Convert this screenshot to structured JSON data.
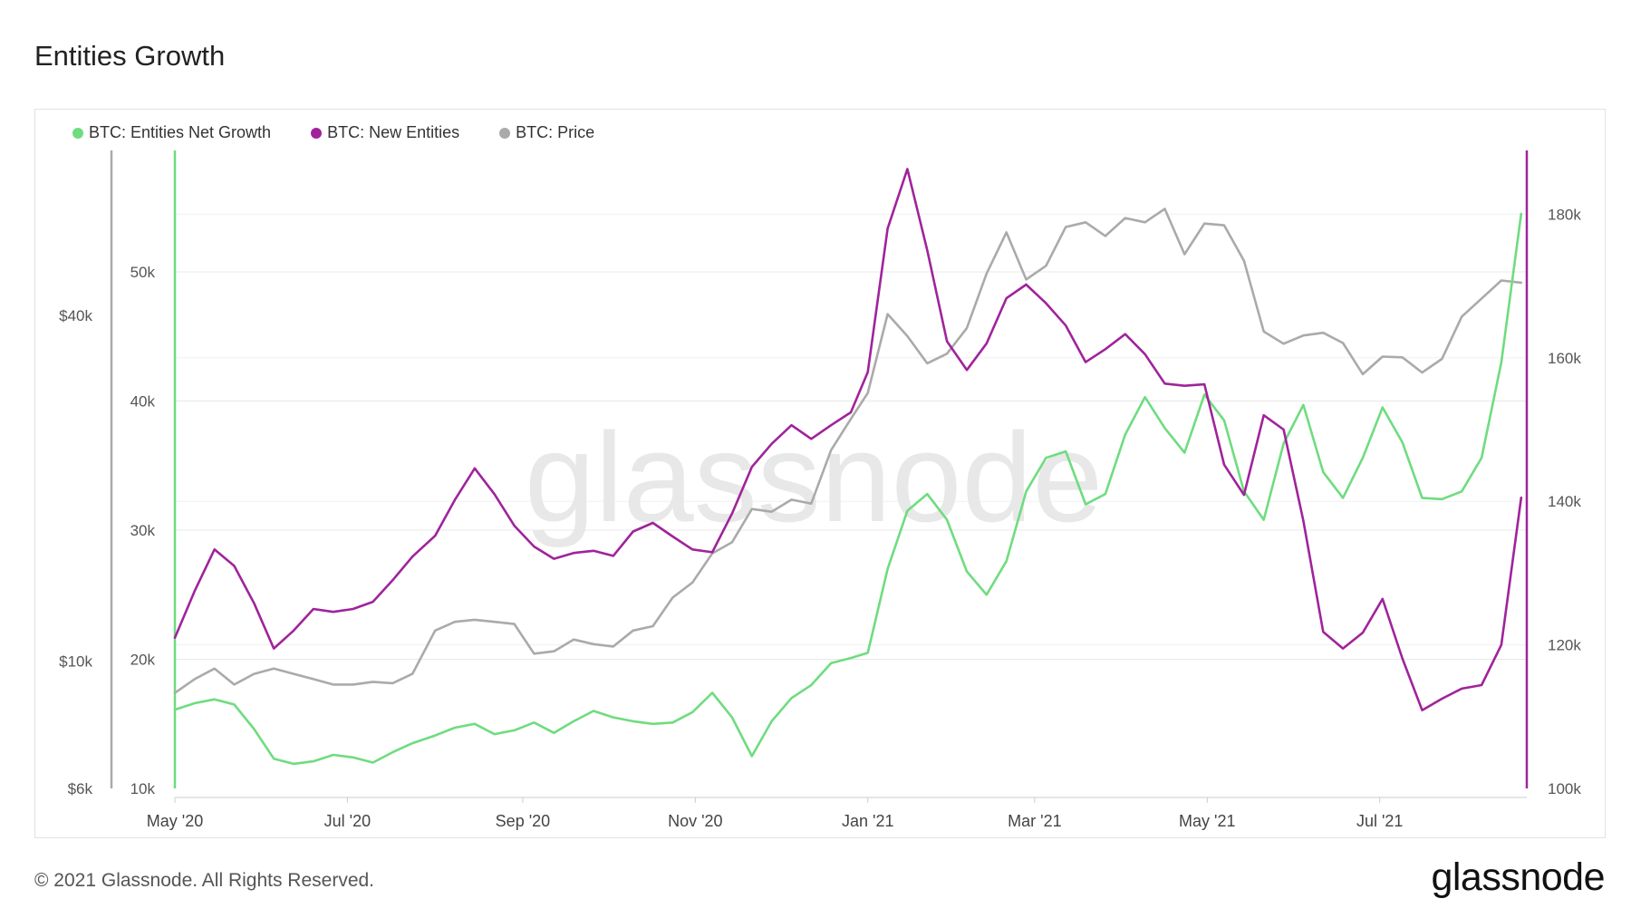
{
  "page": {
    "title": "Entities Growth"
  },
  "footer": {
    "copyright": "© 2021 Glassnode. All Rights Reserved.",
    "logo": "glassnode"
  },
  "watermark": "glassnode",
  "colors": {
    "net_growth": "#6fdc7f",
    "new_entities": "#a0239b",
    "price": "#aaaaaa",
    "grid": "#e8e8e8"
  },
  "chart_data": {
    "type": "line",
    "title": "Entities Growth",
    "x_axis": {
      "ticks": [
        "May '20",
        "Jul '20",
        "Sep '20",
        "Nov '20",
        "Jan '21",
        "Mar '21",
        "May '21",
        "Jul '21"
      ],
      "range": [
        "2020-05-01",
        "2021-07-28"
      ]
    },
    "y_axes": {
      "price": {
        "ticks": [
          "$6k",
          "$10k",
          "$40k"
        ],
        "scale": "log",
        "range": [
          6000,
          70000
        ]
      },
      "net_growth": {
        "ticks": [
          "10k",
          "20k",
          "30k",
          "40k",
          "50k"
        ],
        "range": [
          10000,
          55000
        ]
      },
      "new_entities": {
        "ticks": [
          "100k",
          "120k",
          "140k",
          "160k",
          "180k"
        ],
        "range": [
          100000,
          190000
        ]
      }
    },
    "legend": {
      "position": "top-left",
      "items": [
        "BTC: Entities Net Growth",
        "BTC: New Entities",
        "BTC: Price"
      ]
    },
    "series": [
      {
        "name": "BTC: Entities Net Growth",
        "axis": "net_growth",
        "points": [
          [
            "2020-05-01",
            16100
          ],
          [
            "2020-05-08",
            16600
          ],
          [
            "2020-05-15",
            16900
          ],
          [
            "2020-05-22",
            16500
          ],
          [
            "2020-05-29",
            14600
          ],
          [
            "2020-06-05",
            12300
          ],
          [
            "2020-06-12",
            11900
          ],
          [
            "2020-06-19",
            12100
          ],
          [
            "2020-06-26",
            12600
          ],
          [
            "2020-07-03",
            12400
          ],
          [
            "2020-07-10",
            12000
          ],
          [
            "2020-07-17",
            12800
          ],
          [
            "2020-07-24",
            13500
          ],
          [
            "2020-08-01",
            14100
          ],
          [
            "2020-08-08",
            14700
          ],
          [
            "2020-08-15",
            15000
          ],
          [
            "2020-08-22",
            14200
          ],
          [
            "2020-08-29",
            14500
          ],
          [
            "2020-09-05",
            15100
          ],
          [
            "2020-09-12",
            14300
          ],
          [
            "2020-09-19",
            15200
          ],
          [
            "2020-09-26",
            16000
          ],
          [
            "2020-10-03",
            15500
          ],
          [
            "2020-10-10",
            15200
          ],
          [
            "2020-10-17",
            15000
          ],
          [
            "2020-10-24",
            15100
          ],
          [
            "2020-10-31",
            15900
          ],
          [
            "2020-11-07",
            17400
          ],
          [
            "2020-11-14",
            15500
          ],
          [
            "2020-11-21",
            12500
          ],
          [
            "2020-11-28",
            15200
          ],
          [
            "2020-12-05",
            17000
          ],
          [
            "2020-12-12",
            18000
          ],
          [
            "2020-12-19",
            19700
          ],
          [
            "2020-12-26",
            20100
          ],
          [
            "2021-01-01",
            20500
          ],
          [
            "2021-01-08",
            27000
          ],
          [
            "2021-01-15",
            31500
          ],
          [
            "2021-01-22",
            32800
          ],
          [
            "2021-01-29",
            30800
          ],
          [
            "2021-02-05",
            26800
          ],
          [
            "2021-02-12",
            25000
          ],
          [
            "2021-02-19",
            27600
          ],
          [
            "2021-02-26",
            33000
          ],
          [
            "2021-03-05",
            35600
          ],
          [
            "2021-03-12",
            36100
          ],
          [
            "2021-03-19",
            32000
          ],
          [
            "2021-03-26",
            32800
          ],
          [
            "2021-04-02",
            37400
          ],
          [
            "2021-04-09",
            40300
          ],
          [
            "2021-04-16",
            37900
          ],
          [
            "2021-04-23",
            36000
          ],
          [
            "2021-04-30",
            40500
          ],
          [
            "2021-05-07",
            38500
          ],
          [
            "2021-05-14",
            33000
          ],
          [
            "2021-05-21",
            30800
          ],
          [
            "2021-05-28",
            36700
          ],
          [
            "2021-06-04",
            39700
          ],
          [
            "2021-06-11",
            34500
          ],
          [
            "2021-06-18",
            32500
          ],
          [
            "2021-06-25",
            35600
          ],
          [
            "2021-07-02",
            39500
          ],
          [
            "2021-07-09",
            36800
          ],
          [
            "2021-07-16",
            32500
          ],
          [
            "2021-07-23",
            32400
          ],
          [
            "2021-07-30",
            33000
          ],
          [
            "2021-08-06",
            35600
          ],
          [
            "2021-08-13",
            43000
          ],
          [
            "2021-08-20",
            54500
          ]
        ]
      },
      {
        "name": "BTC: New Entities",
        "axis": "new_entities",
        "points": [
          [
            "2020-05-01",
            121000
          ],
          [
            "2020-05-08",
            127500
          ],
          [
            "2020-05-15",
            133300
          ],
          [
            "2020-05-22",
            131000
          ],
          [
            "2020-05-29",
            125800
          ],
          [
            "2020-06-05",
            119500
          ],
          [
            "2020-06-12",
            122000
          ],
          [
            "2020-06-19",
            125000
          ],
          [
            "2020-06-26",
            124600
          ],
          [
            "2020-07-03",
            125000
          ],
          [
            "2020-07-10",
            126000
          ],
          [
            "2020-07-17",
            129000
          ],
          [
            "2020-07-24",
            132300
          ],
          [
            "2020-08-01",
            135200
          ],
          [
            "2020-08-08",
            140200
          ],
          [
            "2020-08-15",
            144600
          ],
          [
            "2020-08-22",
            141000
          ],
          [
            "2020-08-29",
            136600
          ],
          [
            "2020-09-05",
            133700
          ],
          [
            "2020-09-12",
            132000
          ],
          [
            "2020-09-19",
            132800
          ],
          [
            "2020-09-26",
            133100
          ],
          [
            "2020-10-03",
            132400
          ],
          [
            "2020-10-10",
            135800
          ],
          [
            "2020-10-17",
            137000
          ],
          [
            "2020-10-24",
            135100
          ],
          [
            "2020-10-31",
            133300
          ],
          [
            "2020-11-07",
            132900
          ],
          [
            "2020-11-14",
            138300
          ],
          [
            "2020-11-21",
            144800
          ],
          [
            "2020-11-28",
            148000
          ],
          [
            "2020-12-05",
            150600
          ],
          [
            "2020-12-12",
            148700
          ],
          [
            "2020-12-19",
            150600
          ],
          [
            "2020-12-26",
            152400
          ],
          [
            "2021-01-01",
            158000
          ],
          [
            "2021-01-08",
            178000
          ],
          [
            "2021-01-15",
            186300
          ],
          [
            "2021-01-22",
            175000
          ],
          [
            "2021-01-29",
            162300
          ],
          [
            "2021-02-05",
            158300
          ],
          [
            "2021-02-12",
            162000
          ],
          [
            "2021-02-19",
            168300
          ],
          [
            "2021-02-26",
            170200
          ],
          [
            "2021-03-05",
            167600
          ],
          [
            "2021-03-12",
            164500
          ],
          [
            "2021-03-19",
            159400
          ],
          [
            "2021-03-26",
            161200
          ],
          [
            "2021-04-02",
            163300
          ],
          [
            "2021-04-09",
            160500
          ],
          [
            "2021-04-16",
            156400
          ],
          [
            "2021-04-23",
            156100
          ],
          [
            "2021-04-30",
            156300
          ],
          [
            "2021-05-07",
            145100
          ],
          [
            "2021-05-14",
            140900
          ],
          [
            "2021-05-21",
            152000
          ],
          [
            "2021-05-28",
            150000
          ],
          [
            "2021-06-04",
            137300
          ],
          [
            "2021-06-11",
            121800
          ],
          [
            "2021-06-18",
            119500
          ],
          [
            "2021-06-25",
            121700
          ],
          [
            "2021-07-02",
            126400
          ],
          [
            "2021-07-09",
            118100
          ],
          [
            "2021-07-16",
            110900
          ],
          [
            "2021-07-23",
            112500
          ],
          [
            "2021-07-30",
            113900
          ],
          [
            "2021-08-06",
            114400
          ],
          [
            "2021-08-13",
            120000
          ],
          [
            "2021-08-20",
            140500
          ]
        ]
      },
      {
        "name": "BTC: Price",
        "axis": "price",
        "points": [
          [
            "2020-05-01",
            8800
          ],
          [
            "2020-05-08",
            9300
          ],
          [
            "2020-05-15",
            9700
          ],
          [
            "2020-05-22",
            9100
          ],
          [
            "2020-05-29",
            9500
          ],
          [
            "2020-06-05",
            9700
          ],
          [
            "2020-06-12",
            9500
          ],
          [
            "2020-06-19",
            9300
          ],
          [
            "2020-06-26",
            9100
          ],
          [
            "2020-07-03",
            9100
          ],
          [
            "2020-07-10",
            9200
          ],
          [
            "2020-07-17",
            9150
          ],
          [
            "2020-07-24",
            9500
          ],
          [
            "2020-08-01",
            11300
          ],
          [
            "2020-08-08",
            11700
          ],
          [
            "2020-08-15",
            11800
          ],
          [
            "2020-08-22",
            11700
          ],
          [
            "2020-08-29",
            11600
          ],
          [
            "2020-09-05",
            10300
          ],
          [
            "2020-09-12",
            10400
          ],
          [
            "2020-09-19",
            10900
          ],
          [
            "2020-09-26",
            10700
          ],
          [
            "2020-10-03",
            10600
          ],
          [
            "2020-10-10",
            11300
          ],
          [
            "2020-10-17",
            11500
          ],
          [
            "2020-10-24",
            12900
          ],
          [
            "2020-10-31",
            13700
          ],
          [
            "2020-11-07",
            15400
          ],
          [
            "2020-11-14",
            16100
          ],
          [
            "2020-11-21",
            18400
          ],
          [
            "2020-11-28",
            18200
          ],
          [
            "2020-12-05",
            19100
          ],
          [
            "2020-12-12",
            18800
          ],
          [
            "2020-12-19",
            23300
          ],
          [
            "2020-12-26",
            26400
          ],
          [
            "2021-01-01",
            29300
          ],
          [
            "2021-01-08",
            40200
          ],
          [
            "2021-01-15",
            36800
          ],
          [
            "2021-01-22",
            33000
          ],
          [
            "2021-01-29",
            34300
          ],
          [
            "2021-02-05",
            38000
          ],
          [
            "2021-02-12",
            47300
          ],
          [
            "2021-02-19",
            55800
          ],
          [
            "2021-02-26",
            46200
          ],
          [
            "2021-03-05",
            48800
          ],
          [
            "2021-03-12",
            57000
          ],
          [
            "2021-03-19",
            58100
          ],
          [
            "2021-03-26",
            55000
          ],
          [
            "2021-04-02",
            59100
          ],
          [
            "2021-04-09",
            58100
          ],
          [
            "2021-04-16",
            61300
          ],
          [
            "2021-04-23",
            51100
          ],
          [
            "2021-04-30",
            57800
          ],
          [
            "2021-05-07",
            57400
          ],
          [
            "2021-05-14",
            49800
          ],
          [
            "2021-05-21",
            37500
          ],
          [
            "2021-05-28",
            35700
          ],
          [
            "2021-06-04",
            36900
          ],
          [
            "2021-06-11",
            37300
          ],
          [
            "2021-06-18",
            35800
          ],
          [
            "2021-06-25",
            31600
          ],
          [
            "2021-07-02",
            33900
          ],
          [
            "2021-07-09",
            33800
          ],
          [
            "2021-07-16",
            31800
          ],
          [
            "2021-07-23",
            33600
          ],
          [
            "2021-07-30",
            39800
          ],
          [
            "2021-08-06",
            42800
          ],
          [
            "2021-08-13",
            46000
          ],
          [
            "2021-08-20",
            45600
          ]
        ]
      }
    ]
  }
}
